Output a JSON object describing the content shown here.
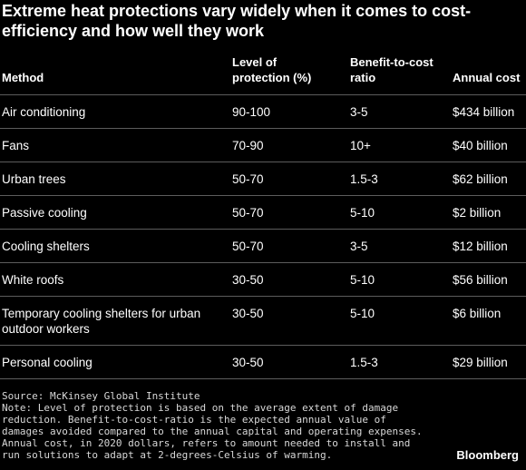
{
  "title": "Extreme heat protections vary widely when it comes to cost-efficiency and how well they work",
  "table": {
    "headers": {
      "method": "Method",
      "protection": "Level of protection (%)",
      "ratio": "Benefit-to-cost ratio",
      "cost": "Annual cost"
    },
    "rows": [
      {
        "method": "Air conditioning",
        "protection": "90-100",
        "ratio": "3-5",
        "cost": "$434 billion"
      },
      {
        "method": "Fans",
        "protection": "70-90",
        "ratio": "10+",
        "cost": "$40 billion"
      },
      {
        "method": "Urban trees",
        "protection": "50-70",
        "ratio": "1.5-3",
        "cost": "$62 billion"
      },
      {
        "method": "Passive cooling",
        "protection": "50-70",
        "ratio": "5-10",
        "cost": "$2 billion"
      },
      {
        "method": "Cooling shelters",
        "protection": "50-70",
        "ratio": "3-5",
        "cost": "$12 billion"
      },
      {
        "method": "White roofs",
        "protection": "30-50",
        "ratio": "5-10",
        "cost": "$56 billion"
      },
      {
        "method": "Temporary cooling shelters for urban outdoor workers",
        "protection": "30-50",
        "ratio": "5-10",
        "cost": "$6 billion"
      },
      {
        "method": "Personal cooling",
        "protection": "30-50",
        "ratio": "1.5-3",
        "cost": "$29 billion"
      }
    ]
  },
  "footer": {
    "source": "Source: McKinsey Global Institute",
    "note": "Note: Level of protection is based on the average extent of damage reduction. Benefit-to-cost-ratio is the expected annual value of damages avoided compared to the annual capital and operating expenses. Annual cost, in 2020 dollars, refers to amount needed to install and run solutions to adapt at 2-degrees-Celsius of warming."
  },
  "brand": "Bloomberg"
}
